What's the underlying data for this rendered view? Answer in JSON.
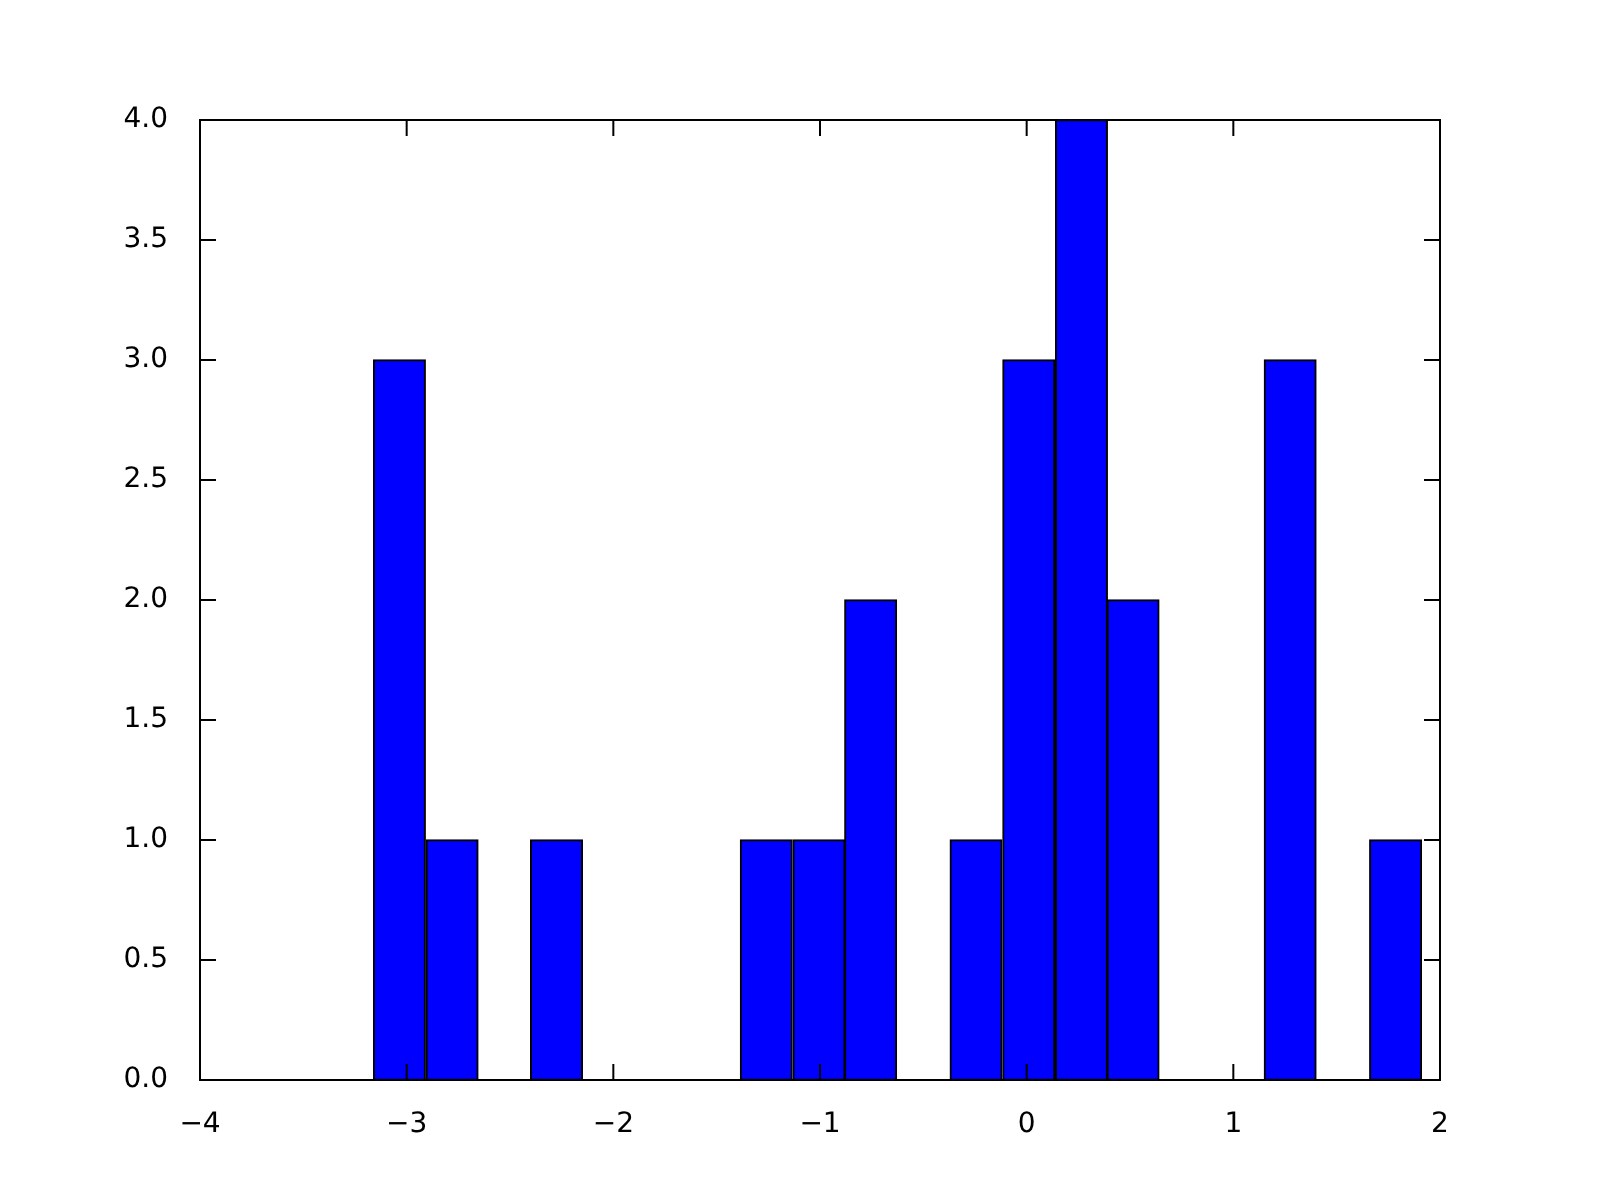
{
  "chart_data": {
    "type": "histogram",
    "color": "#0000ff",
    "bins": [
      -3.16,
      -2.91,
      -2.65,
      -2.4,
      -2.15,
      -1.89,
      -1.64,
      -1.39,
      -1.13,
      -0.88,
      -0.63,
      -0.37,
      -0.12,
      0.14,
      0.39,
      0.64,
      0.9,
      1.15,
      1.4,
      1.66,
      1.91
    ],
    "values": [
      3,
      1,
      0,
      1,
      0,
      0,
      0,
      1,
      1,
      2,
      0,
      1,
      3,
      4,
      2,
      0,
      0,
      3,
      0,
      1
    ],
    "xlim": [
      -4,
      2
    ],
    "xticks": [
      {
        "value": -4,
        "label": "−4"
      },
      {
        "value": -3,
        "label": "−3"
      },
      {
        "value": -2,
        "label": "−2"
      },
      {
        "value": -1,
        "label": "−1"
      },
      0,
      1,
      2
    ],
    "ylim": [
      0,
      4
    ],
    "yticks": [
      {
        "value": 0,
        "label": "0.0"
      },
      {
        "value": 0.5,
        "label": "0.5"
      },
      {
        "value": 1,
        "label": "1.0"
      },
      {
        "value": 1.5,
        "label": "1.5"
      },
      {
        "value": 2,
        "label": "2.0"
      },
      {
        "value": 2.5,
        "label": "2.5"
      },
      {
        "value": 3,
        "label": "3.0"
      },
      {
        "value": 3.5,
        "label": "3.5"
      },
      {
        "value": 4,
        "label": "4.0"
      }
    ]
  }
}
